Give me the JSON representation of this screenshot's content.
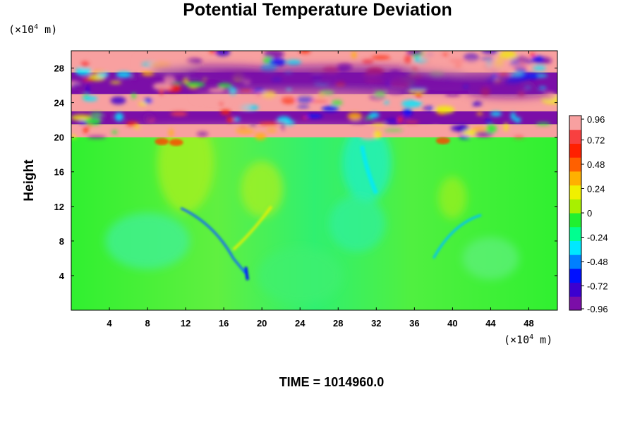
{
  "title": "Potential Temperature Deviation",
  "y_unit": {
    "prefix": "(×10",
    "exp": "4",
    "suffix": " m)"
  },
  "x_unit": {
    "prefix": "(×10",
    "exp": "4",
    "suffix": " m)"
  },
  "ylabel": "Height",
  "footer": "TIME = 1014960.0",
  "chart_data": {
    "type": "heatmap",
    "title": "Potential Temperature Deviation",
    "xlabel": "",
    "ylabel": "Height",
    "x_unit": "×10^4 m",
    "y_unit": "×10^4 m",
    "xlim": [
      0,
      51
    ],
    "ylim": [
      0,
      30
    ],
    "x_ticks": [
      "4",
      "8",
      "12",
      "16",
      "20",
      "24",
      "28",
      "32",
      "36",
      "40",
      "44",
      "48"
    ],
    "y_ticks": [
      "4",
      "8",
      "12",
      "16",
      "20",
      "24",
      "28"
    ],
    "colorbar": {
      "ticks": [
        "0.96",
        "0.72",
        "0.48",
        "0.24",
        "0",
        "-0.24",
        "-0.48",
        "-0.72",
        "-0.96"
      ],
      "range": [
        -0.96,
        0.96
      ],
      "colors": [
        "#7b0ea8",
        "#3c00d0",
        "#0010ff",
        "#0080ff",
        "#00e8ff",
        "#00ff90",
        "#20f030",
        "#a8f000",
        "#f0f000",
        "#ffb000",
        "#ff6000",
        "#ff2000",
        "#f84040",
        "#f8a0a0"
      ]
    },
    "regions": [
      {
        "y_range": [
          0,
          20
        ],
        "value": 0.0,
        "note": ""
      },
      {
        "y_range": [
          20,
          21.5
        ],
        "value": 0.96
      },
      {
        "y_range": [
          21.5,
          23
        ],
        "value": -0.96
      },
      {
        "y_range": [
          23,
          25
        ],
        "value": 0.96
      },
      {
        "y_range": [
          25,
          27.5
        ],
        "value": -0.96
      },
      {
        "y_range": [
          27.5,
          30
        ],
        "value": 0.96
      }
    ],
    "grid": false,
    "legend": "colorbar-right"
  },
  "time_label": "TIME = 1014960.0"
}
